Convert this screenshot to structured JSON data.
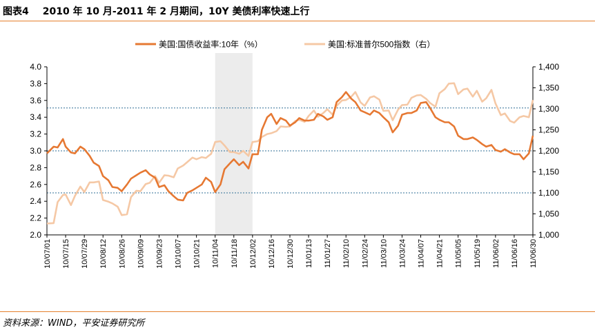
{
  "figure": {
    "number": "图表4",
    "title": "2010 年 10 月-2011 年 2 月期间，10Y 美债利率快速上行",
    "source": "资料来源：WIND，平安证券研究所"
  },
  "colors": {
    "series_yield": "#e67832",
    "series_spx": "#f5c8a5",
    "shade": "#ececec",
    "refline": "#2e6e96",
    "rule": "#e57e2a"
  },
  "chart_data": {
    "type": "line",
    "title": "2010 年 10 月-2011 年 2 月期间，10Y 美债利率快速上行",
    "legend_position": "top",
    "x_tick_labels": [
      "10/07/01",
      "10/07/15",
      "10/07/29",
      "10/08/12",
      "10/08/26",
      "10/09/09",
      "10/09/23",
      "10/10/07",
      "10/10/21",
      "10/11/04",
      "10/11/18",
      "10/12/02",
      "10/12/16",
      "10/12/30",
      "11/01/13",
      "11/01/27",
      "11/02/10",
      "11/02/24",
      "11/03/10",
      "11/03/24",
      "11/04/07",
      "11/04/21",
      "11/05/05",
      "11/05/19",
      "11/06/02",
      "11/06/16",
      "11/06/30"
    ],
    "y_left": {
      "min": 2.0,
      "max": 4.0,
      "ticks": [
        "2.0",
        "2.2",
        "2.4",
        "2.6",
        "2.8",
        "3.0",
        "3.2",
        "3.4",
        "3.6",
        "3.8",
        "4.0"
      ]
    },
    "y_right": {
      "min": 1000,
      "max": 1400,
      "ticks": [
        "1,000",
        "1,050",
        "1,100",
        "1,150",
        "1,200",
        "1,250",
        "1,300",
        "1,350",
        "1,400"
      ]
    },
    "shaded_period": {
      "start": "10/11/04",
      "end": "10/12/02"
    },
    "reference_lines_left_axis": [
      2.5,
      3.0,
      3.51
    ],
    "series": [
      {
        "name": "美国:国债收益率:10年（%）",
        "axis": "left",
        "x": [
          "10/07/01",
          "10/07/06",
          "10/07/09",
          "10/07/13",
          "10/07/15",
          "10/07/19",
          "10/07/22",
          "10/07/26",
          "10/07/29",
          "10/08/02",
          "10/08/05",
          "10/08/09",
          "10/08/12",
          "10/08/16",
          "10/08/19",
          "10/08/23",
          "10/08/26",
          "10/08/30",
          "10/09/02",
          "10/09/06",
          "10/09/09",
          "10/09/13",
          "10/09/16",
          "10/09/20",
          "10/09/23",
          "10/09/27",
          "10/09/30",
          "10/10/04",
          "10/10/07",
          "10/10/11",
          "10/10/14",
          "10/10/18",
          "10/10/21",
          "10/10/25",
          "10/10/28",
          "10/11/01",
          "10/11/04",
          "10/11/08",
          "10/11/11",
          "10/11/15",
          "10/11/18",
          "10/11/22",
          "10/11/25",
          "10/11/29",
          "10/12/02",
          "10/12/06",
          "10/12/09",
          "10/12/13",
          "10/12/16",
          "10/12/20",
          "10/12/23",
          "10/12/27",
          "10/12/30",
          "11/01/03",
          "11/01/06",
          "11/01/10",
          "11/01/13",
          "11/01/17",
          "11/01/20",
          "11/01/24",
          "11/01/27",
          "11/01/31",
          "11/02/03",
          "11/02/07",
          "11/02/10",
          "11/02/14",
          "11/02/17",
          "11/02/21",
          "11/02/24",
          "11/02/28",
          "11/03/03",
          "11/03/07",
          "11/03/10",
          "11/03/14",
          "11/03/17",
          "11/03/21",
          "11/03/24",
          "11/03/28",
          "11/03/31",
          "11/04/04",
          "11/04/07",
          "11/04/11",
          "11/04/14",
          "11/04/18",
          "11/04/21",
          "11/04/25",
          "11/04/28",
          "11/05/02",
          "11/05/05",
          "11/05/09",
          "11/05/12",
          "11/05/16",
          "11/05/19",
          "11/05/23",
          "11/05/26",
          "11/05/30",
          "11/06/02",
          "11/06/06",
          "11/06/09",
          "11/06/13",
          "11/06/16",
          "11/06/20",
          "11/06/23",
          "11/06/27",
          "11/06/30"
        ],
        "values": [
          2.97,
          3.05,
          3.04,
          3.14,
          3.05,
          2.98,
          2.97,
          3.05,
          3.02,
          2.94,
          2.86,
          2.82,
          2.7,
          2.65,
          2.57,
          2.56,
          2.52,
          2.6,
          2.67,
          2.71,
          2.74,
          2.77,
          2.72,
          2.68,
          2.57,
          2.59,
          2.52,
          2.46,
          2.42,
          2.41,
          2.5,
          2.53,
          2.56,
          2.6,
          2.68,
          2.63,
          2.51,
          2.6,
          2.78,
          2.85,
          2.9,
          2.83,
          2.87,
          2.79,
          2.96,
          2.96,
          3.25,
          3.4,
          3.44,
          3.32,
          3.39,
          3.36,
          3.3,
          3.34,
          3.39,
          3.36,
          3.36,
          3.37,
          3.44,
          3.41,
          3.37,
          3.4,
          3.58,
          3.64,
          3.7,
          3.62,
          3.58,
          3.48,
          3.46,
          3.43,
          3.48,
          3.45,
          3.4,
          3.34,
          3.22,
          3.3,
          3.43,
          3.45,
          3.45,
          3.48,
          3.57,
          3.58,
          3.51,
          3.4,
          3.37,
          3.34,
          3.34,
          3.29,
          3.18,
          3.14,
          3.14,
          3.16,
          3.13,
          3.08,
          3.05,
          3.07,
          3.01,
          2.99,
          3.02,
          2.98,
          2.96,
          2.96,
          2.9,
          2.97,
          3.18
        ]
      },
      {
        "name": "美国:标准普尔500指数（右）",
        "axis": "right",
        "x": [
          "10/07/01",
          "10/07/06",
          "10/07/09",
          "10/07/13",
          "10/07/15",
          "10/07/19",
          "10/07/22",
          "10/07/26",
          "10/07/29",
          "10/08/02",
          "10/08/05",
          "10/08/09",
          "10/08/12",
          "10/08/16",
          "10/08/19",
          "10/08/23",
          "10/08/26",
          "10/08/30",
          "10/09/02",
          "10/09/06",
          "10/09/09",
          "10/09/13",
          "10/09/16",
          "10/09/20",
          "10/09/23",
          "10/09/27",
          "10/09/30",
          "10/10/04",
          "10/10/07",
          "10/10/11",
          "10/10/14",
          "10/10/18",
          "10/10/21",
          "10/10/25",
          "10/10/28",
          "10/11/01",
          "10/11/04",
          "10/11/08",
          "10/11/11",
          "10/11/15",
          "10/11/18",
          "10/11/22",
          "10/11/25",
          "10/11/29",
          "10/12/02",
          "10/12/06",
          "10/12/09",
          "10/12/13",
          "10/12/16",
          "10/12/20",
          "10/12/23",
          "10/12/27",
          "10/12/30",
          "11/01/03",
          "11/01/06",
          "11/01/10",
          "11/01/13",
          "11/01/17",
          "11/01/20",
          "11/01/24",
          "11/01/27",
          "11/01/31",
          "11/02/03",
          "11/02/07",
          "11/02/10",
          "11/02/14",
          "11/02/17",
          "11/02/21",
          "11/02/24",
          "11/02/28",
          "11/03/03",
          "11/03/07",
          "11/03/10",
          "11/03/14",
          "11/03/17",
          "11/03/21",
          "11/03/24",
          "11/03/28",
          "11/03/31",
          "11/04/04",
          "11/04/07",
          "11/04/11",
          "11/04/14",
          "11/04/18",
          "11/04/21",
          "11/04/25",
          "11/04/28",
          "11/05/02",
          "11/05/05",
          "11/05/09",
          "11/05/12",
          "11/05/16",
          "11/05/19",
          "11/05/23",
          "11/05/26",
          "11/05/30",
          "11/06/02",
          "11/06/06",
          "11/06/09",
          "11/06/13",
          "11/06/16",
          "11/06/20",
          "11/06/23",
          "11/06/27",
          "11/06/30"
        ],
        "values": [
          1027,
          1028,
          1078,
          1095,
          1096,
          1071,
          1093,
          1115,
          1102,
          1125,
          1125,
          1127,
          1083,
          1079,
          1075,
          1067,
          1047,
          1049,
          1090,
          1105,
          1104,
          1121,
          1124,
          1140,
          1124,
          1142,
          1141,
          1137,
          1158,
          1165,
          1173,
          1184,
          1180,
          1185,
          1183,
          1193,
          1221,
          1223,
          1213,
          1197,
          1197,
          1193,
          1200,
          1188,
          1221,
          1223,
          1233,
          1240,
          1242,
          1247,
          1258,
          1257,
          1258,
          1271,
          1274,
          1269,
          1283,
          1296,
          1281,
          1290,
          1299,
          1286,
          1307,
          1320,
          1321,
          1329,
          1340,
          1315,
          1307,
          1327,
          1330,
          1322,
          1295,
          1296,
          1273,
          1298,
          1309,
          1310,
          1326,
          1332,
          1333,
          1324,
          1314,
          1305,
          1337,
          1347,
          1360,
          1361,
          1335,
          1346,
          1348,
          1329,
          1343,
          1317,
          1325,
          1345,
          1313,
          1285,
          1289,
          1271,
          1267,
          1280,
          1283,
          1280,
          1321
        ]
      }
    ]
  }
}
